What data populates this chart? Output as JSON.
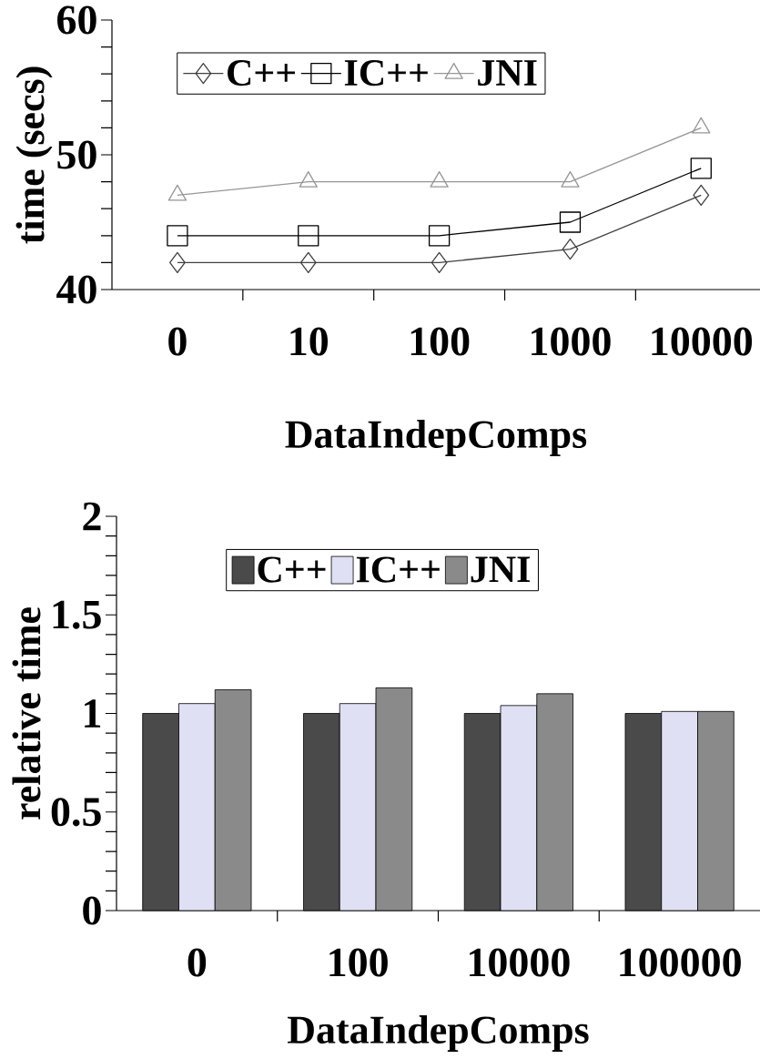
{
  "chart_data": [
    {
      "type": "line",
      "xlabel": "DataIndepComps",
      "ylabel": "time (secs)",
      "categories": [
        "0",
        "10",
        "100",
        "1000",
        "10000"
      ],
      "series": [
        {
          "name": "C++",
          "color": "#404040",
          "marker": "diamond",
          "values": [
            42,
            42,
            42,
            43,
            47
          ]
        },
        {
          "name": "IC++",
          "color": "#000000",
          "marker": "square",
          "values": [
            44,
            44,
            44,
            45,
            49
          ]
        },
        {
          "name": "JNI",
          "color": "#969696",
          "marker": "triangle",
          "values": [
            47,
            48,
            48,
            48,
            52
          ]
        }
      ],
      "ylim": [
        40,
        60
      ],
      "yticks": [
        40,
        {
          "value": 42,
          "label": null
        },
        {
          "value": 44,
          "label": null
        },
        {
          "value": 46,
          "label": null
        },
        {
          "value": 48,
          "label": null
        },
        50,
        {
          "value": 52,
          "label": null
        },
        {
          "value": 54,
          "label": null
        },
        {
          "value": 56,
          "label": null
        },
        {
          "value": 58,
          "label": null
        },
        60
      ],
      "legend": "top left",
      "grid": false
    },
    {
      "type": "bar",
      "xlabel": "DataIndepComps",
      "ylabel": "relative time",
      "categories": [
        "0",
        "100",
        "10000",
        "100000"
      ],
      "series": [
        {
          "name": "C++",
          "color": "#4a4a4a",
          "values": [
            1.0,
            1.0,
            1.0,
            1.0
          ]
        },
        {
          "name": "IC++",
          "color": "#e0e0f4",
          "values": [
            1.05,
            1.05,
            1.04,
            1.01
          ]
        },
        {
          "name": "JNI",
          "color": "#8a8a8a",
          "values": [
            1.12,
            1.13,
            1.1,
            1.01
          ]
        }
      ],
      "ylim": [
        0,
        2
      ],
      "yticks": [
        0,
        {
          "value": 0.1,
          "label": null
        },
        {
          "value": 0.2,
          "label": null
        },
        {
          "value": 0.3,
          "label": null
        },
        {
          "value": 0.4,
          "label": null
        },
        0.5,
        {
          "value": 0.6,
          "label": null
        },
        {
          "value": 0.7,
          "label": null
        },
        {
          "value": 0.8,
          "label": null
        },
        {
          "value": 0.9,
          "label": null
        },
        1,
        {
          "value": 1.1,
          "label": null
        },
        {
          "value": 1.2,
          "label": null
        },
        {
          "value": 1.3,
          "label": null
        },
        {
          "value": 1.4,
          "label": null
        },
        1.5,
        {
          "value": 1.6,
          "label": null
        },
        {
          "value": 1.7,
          "label": null
        },
        {
          "value": 1.8,
          "label": null
        },
        {
          "value": 1.9,
          "label": null
        },
        2
      ],
      "legend": "top left",
      "grid": false
    }
  ]
}
